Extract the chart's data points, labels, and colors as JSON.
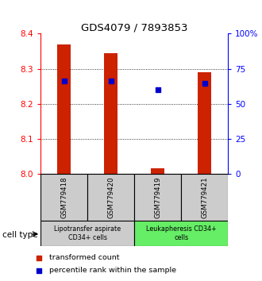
{
  "title": "GDS4079 / 7893853",
  "samples": [
    "GSM779418",
    "GSM779420",
    "GSM779419",
    "GSM779421"
  ],
  "red_bar_bottoms": [
    8.0,
    8.0,
    8.0,
    8.0
  ],
  "red_bar_tops": [
    8.37,
    8.345,
    8.018,
    8.29
  ],
  "blue_dot_values": [
    8.265,
    8.265,
    8.24,
    8.258
  ],
  "ylim": [
    8.0,
    8.4
  ],
  "yticks_left": [
    8.0,
    8.1,
    8.2,
    8.3,
    8.4
  ],
  "yticks_right": [
    0,
    25,
    50,
    75,
    100
  ],
  "ytick_right_labels": [
    "0",
    "25",
    "50",
    "75",
    "100%"
  ],
  "grid_values": [
    8.1,
    8.2,
    8.3
  ],
  "group1_label": "Lipotransfer aspirate\nCD34+ cells",
  "group1_color": "#cccccc",
  "group2_label": "Leukapheresis CD34+\ncells",
  "group2_color": "#66ee66",
  "cell_type_label": "cell type",
  "legend_red_label": "transformed count",
  "legend_blue_label": "percentile rank within the sample",
  "bar_color": "#cc2200",
  "dot_color": "#0000cc",
  "sample_box_color": "#cccccc",
  "bar_width": 0.28
}
